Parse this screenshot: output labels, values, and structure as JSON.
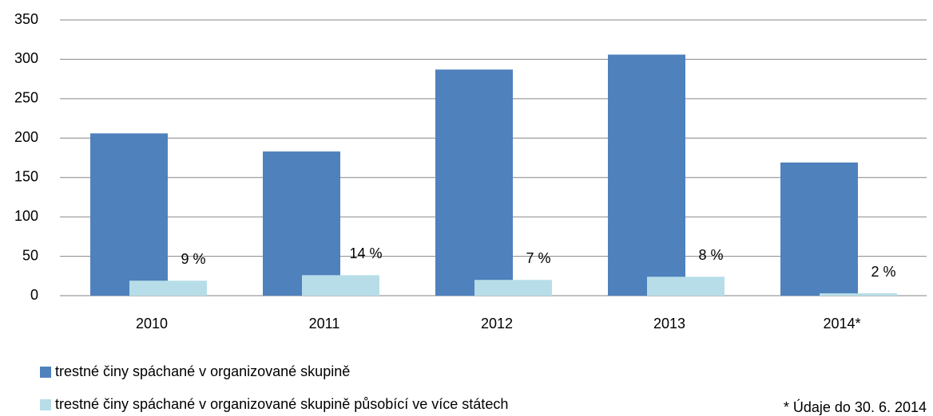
{
  "chart_data": {
    "type": "bar",
    "categories": [
      "2010",
      "2011",
      "2012",
      "2013",
      "2014*"
    ],
    "series": [
      {
        "name": "trestné činy spáchané v organizované skupině",
        "color": "#4f81bd",
        "values": [
          206,
          183,
          287,
          306,
          169
        ]
      },
      {
        "name": "trestné činy spáchané v organizované skupině působící ve více státech",
        "color": "#b7dee8",
        "values": [
          19,
          26,
          20,
          24,
          3
        ]
      }
    ],
    "annotations": [
      "9 %",
      "14 %",
      "7 %",
      "8 %",
      "2 %"
    ],
    "note": "* Údaje do 30. 6. 2014",
    "ylim": [
      0,
      350
    ],
    "yticks": [
      0,
      50,
      100,
      150,
      200,
      250,
      300,
      350
    ],
    "grid": true,
    "legend": "bottom"
  }
}
